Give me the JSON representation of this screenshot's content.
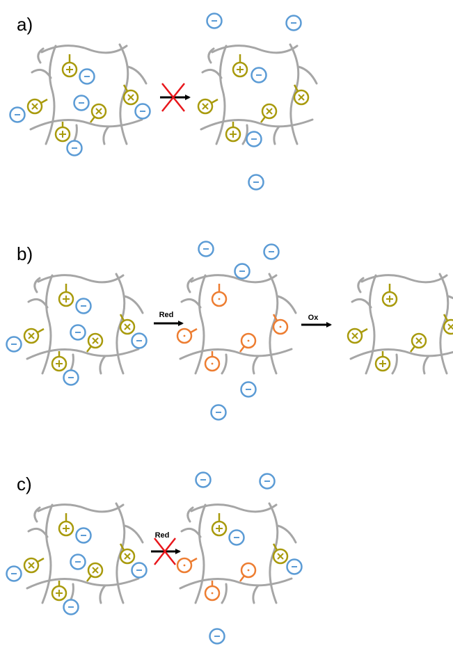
{
  "panel_a": {
    "label": "a)"
  },
  "panel_b": {
    "label": "b)",
    "reduction_arrow": "Red",
    "oxidation_arrow": "Ox"
  },
  "panel_c": {
    "label": "c)",
    "reduction_arrow": "Red"
  }
}
